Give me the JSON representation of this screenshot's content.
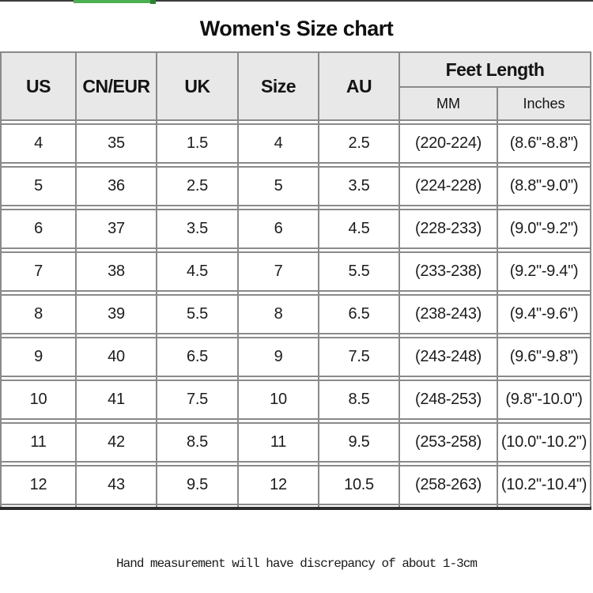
{
  "title": "Women's Size chart",
  "table": {
    "columns": [
      "US",
      "CN/EUR",
      "UK",
      "Size",
      "AU"
    ],
    "feet_length_header": "Feet Length",
    "subcolumns": [
      "MM",
      "Inches"
    ],
    "rows": [
      [
        "4",
        "35",
        "1.5",
        "4",
        "2.5",
        "(220-224)",
        "(8.6\"-8.8\")"
      ],
      [
        "5",
        "36",
        "2.5",
        "5",
        "3.5",
        "(224-228)",
        "(8.8\"-9.0\")"
      ],
      [
        "6",
        "37",
        "3.5",
        "6",
        "4.5",
        "(228-233)",
        "(9.0\"-9.2\")"
      ],
      [
        "7",
        "38",
        "4.5",
        "7",
        "5.5",
        "(233-238)",
        "(9.2\"-9.4\")"
      ],
      [
        "8",
        "39",
        "5.5",
        "8",
        "6.5",
        "(238-243)",
        "(9.4\"-9.6\")"
      ],
      [
        "9",
        "40",
        "6.5",
        "9",
        "7.5",
        "(243-248)",
        "(9.6\"-9.8\")"
      ],
      [
        "10",
        "41",
        "7.5",
        "10",
        "8.5",
        "(248-253)",
        "(9.8\"-10.0\")"
      ],
      [
        "11",
        "42",
        "8.5",
        "11",
        "9.5",
        "(253-258)",
        "(10.0\"-10.2\")"
      ],
      [
        "12",
        "43",
        "9.5",
        "12",
        "10.5",
        "(258-263)",
        "(10.2\"-10.4\")"
      ]
    ]
  },
  "footnote": "Hand measurement will have discrepancy of about 1-3cm",
  "colors": {
    "header_bg": "#e8e8e8",
    "grid_line": "#8a8a8a",
    "bottom_border": "#2d2d2d",
    "progress_green": "#4caf50",
    "top_line": "#3c3c3c"
  }
}
